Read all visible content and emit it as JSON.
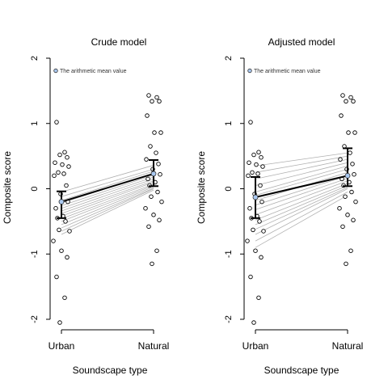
{
  "chart_data": [
    {
      "type": "scatter",
      "title": "Crude model",
      "xlabel": "Soundscape type",
      "ylabel": "Composite score",
      "categories": [
        "Urban",
        "Natural"
      ],
      "ylim": [
        -2,
        2
      ],
      "yticks": [
        "-2",
        "-1",
        "0",
        "1",
        "2"
      ],
      "legend": {
        "label": "The arithmetic mean value",
        "placement": "top-left"
      },
      "mean_marker_color": "#a9c8f0",
      "mean": {
        "Urban": -0.2,
        "Natural": 0.23
      },
      "ci": {
        "Urban": [
          -0.45,
          -0.04
        ],
        "Natural": [
          0.04,
          0.44
        ]
      },
      "points": {
        "Urban": [
          1.02,
          0.56,
          0.52,
          0.48,
          0.4,
          0.37,
          0.34,
          0.25,
          0.23,
          0.2,
          0.05,
          -0.08,
          -0.2,
          -0.3,
          -0.42,
          -0.45,
          -0.5,
          -0.63,
          -0.65,
          -0.8,
          -0.95,
          -1.05,
          -1.35,
          -1.67,
          -2.05
        ],
        "Natural": [
          1.43,
          1.4,
          1.34,
          1.34,
          1.12,
          0.86,
          0.86,
          0.65,
          0.55,
          0.45,
          0.38,
          0.3,
          0.22,
          0.15,
          0.1,
          0.05,
          -0.05,
          -0.12,
          -0.2,
          -0.3,
          -0.4,
          -0.48,
          -0.58,
          -0.95,
          -1.15
        ]
      },
      "subject_lines": [
        [
          -0.05,
          0.36
        ],
        [
          -0.12,
          0.3
        ],
        [
          -0.18,
          0.27
        ],
        [
          -0.22,
          0.24
        ],
        [
          -0.26,
          0.21
        ],
        [
          -0.3,
          0.18
        ],
        [
          -0.34,
          0.15
        ],
        [
          -0.38,
          0.12
        ],
        [
          -0.42,
          0.1
        ],
        [
          -0.46,
          0.07
        ],
        [
          -0.5,
          0.05
        ],
        [
          -0.55,
          0.03
        ],
        [
          -0.6,
          0.01
        ],
        [
          -0.65,
          0.0
        ],
        [
          -0.7,
          -0.02
        ]
      ]
    },
    {
      "type": "scatter",
      "title": "Adjusted model",
      "xlabel": "Soundscape type",
      "ylabel": "Composite score",
      "categories": [
        "Urban",
        "Natural"
      ],
      "ylim": [
        -2,
        2
      ],
      "yticks": [
        "-2",
        "-1",
        "0",
        "1",
        "2"
      ],
      "legend": {
        "label": "The arithmetic mean value",
        "placement": "top-left"
      },
      "mean_marker_color": "#a9c8f0",
      "mean": {
        "Urban": -0.13,
        "Natural": 0.2
      },
      "ci": {
        "Urban": [
          -0.45,
          0.18
        ],
        "Natural": [
          0.04,
          0.62
        ]
      },
      "points": {
        "Urban": [
          1.02,
          0.56,
          0.52,
          0.48,
          0.4,
          0.37,
          0.34,
          0.25,
          0.23,
          0.2,
          0.05,
          -0.08,
          -0.2,
          -0.3,
          -0.42,
          -0.45,
          -0.5,
          -0.63,
          -0.65,
          -0.8,
          -0.95,
          -1.05,
          -1.35,
          -1.67,
          -2.05
        ],
        "Natural": [
          1.43,
          1.4,
          1.34,
          1.34,
          1.12,
          0.86,
          0.86,
          0.65,
          0.55,
          0.45,
          0.38,
          0.3,
          0.22,
          0.15,
          0.1,
          0.05,
          -0.05,
          -0.12,
          -0.2,
          -0.3,
          -0.4,
          -0.48,
          -0.58,
          -0.95,
          -1.15
        ]
      },
      "subject_lines": [
        [
          0.35,
          0.55
        ],
        [
          0.25,
          0.5
        ],
        [
          0.15,
          0.45
        ],
        [
          0.05,
          0.4
        ],
        [
          -0.05,
          0.35
        ],
        [
          -0.1,
          0.3
        ],
        [
          -0.18,
          0.25
        ],
        [
          -0.25,
          0.2
        ],
        [
          -0.32,
          0.16
        ],
        [
          -0.4,
          0.12
        ],
        [
          -0.48,
          0.08
        ],
        [
          -0.55,
          0.05
        ],
        [
          -0.62,
          0.02
        ],
        [
          -0.7,
          0.0
        ],
        [
          -0.8,
          -0.05
        ],
        [
          -0.9,
          -0.1
        ]
      ]
    }
  ]
}
